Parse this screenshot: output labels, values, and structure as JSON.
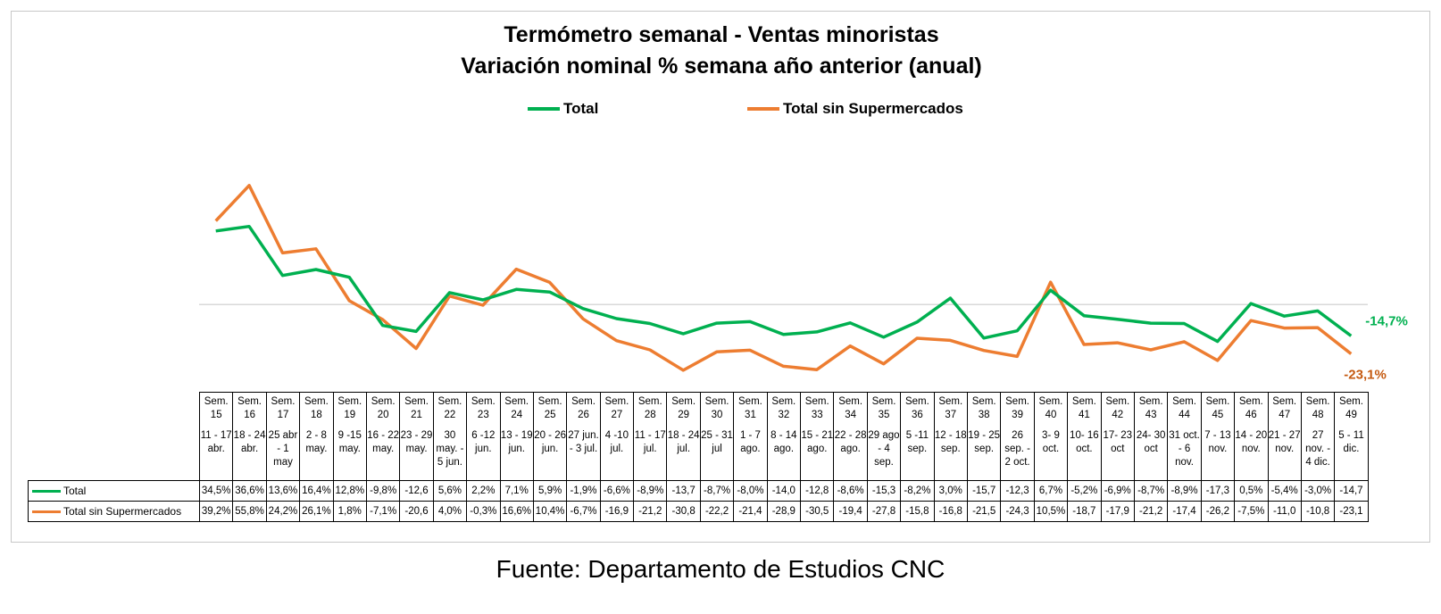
{
  "chart_data": {
    "type": "line",
    "title": "Termómetro semanal - Ventas minoristas",
    "subtitle": "Variación nominal % semana año anterior (anual)",
    "x": [
      "Sem. 15",
      "Sem. 16",
      "Sem. 17",
      "Sem. 18",
      "Sem. 19",
      "Sem. 20",
      "Sem. 21",
      "Sem. 22",
      "Sem. 23",
      "Sem. 24",
      "Sem. 25",
      "Sem. 26",
      "Sem. 27",
      "Sem. 28",
      "Sem. 29",
      "Sem. 30",
      "Sem. 31",
      "Sem. 32",
      "Sem. 33",
      "Sem. 34",
      "Sem. 35",
      "Sem. 36",
      "Sem. 37",
      "Sem. 38",
      "Sem. 39",
      "Sem. 40",
      "Sem. 41",
      "Sem. 42",
      "Sem. 43",
      "Sem. 44",
      "Sem. 45",
      "Sem. 46",
      "Sem. 47",
      "Sem. 48",
      "Sem. 49"
    ],
    "date_ranges": [
      "11 - 17 abr.",
      "18 - 24 abr.",
      "25 abr - 1 may",
      "2 - 8 may.",
      "9 -15 may.",
      "16 - 22 may.",
      "23 - 29 may.",
      "30 may. - 5 jun.",
      "6 -12 jun.",
      "13 - 19 jun.",
      "20 - 26 jun.",
      "27 jun. - 3 jul.",
      "4 -10 jul.",
      "11 - 17 jul.",
      "18 - 24 jul.",
      "25 - 31 jul",
      "1 - 7 ago.",
      "8 - 14 ago.",
      "15 - 21 ago.",
      "22 - 28 ago.",
      "29 ago - 4 sep.",
      "5 -11 sep.",
      "12 - 18 sep.",
      "19 - 25 sep.",
      "26 sep. - 2 oct.",
      "3- 9 oct.",
      "10- 16 oct.",
      "17- 23 oct",
      "24- 30 oct",
      "31 oct. - 6 nov.",
      "7 - 13 nov.",
      "14 - 20 nov.",
      "21 - 27 nov.",
      "27 nov. - 4 dic.",
      "5 - 11 dic."
    ],
    "ylim": [
      -30,
      62
    ],
    "grid": false,
    "legend_position": "top-center",
    "series": [
      {
        "name": "Total",
        "color": "#00b050",
        "values": [
          34.5,
          36.6,
          13.6,
          16.4,
          12.8,
          -9.8,
          -12.6,
          5.6,
          2.2,
          7.1,
          5.9,
          -1.9,
          -6.6,
          -8.9,
          -13.7,
          -8.7,
          -8.0,
          -14.0,
          -12.8,
          -8.6,
          -15.3,
          -8.2,
          3.0,
          -15.7,
          -12.3,
          6.7,
          -5.2,
          -6.9,
          -8.7,
          -8.9,
          -17.3,
          0.5,
          -5.4,
          -3.0,
          -14.7
        ],
        "table_labels": [
          "34,5%",
          "36,6%",
          "13,6%",
          "16,4%",
          "12,8%",
          "-9,8%",
          "-12,6",
          "5,6%",
          "2,2%",
          "7,1%",
          "5,9%",
          "-1,9%",
          "-6,6%",
          "-8,9%",
          "-13,7",
          "-8,7%",
          "-8,0%",
          "-14,0",
          "-12,8",
          "-8,6%",
          "-15,3",
          "-8,2%",
          "3,0%",
          "-15,7",
          "-12,3",
          "6,7%",
          "-5,2%",
          "-6,9%",
          "-8,7%",
          "-8,9%",
          "-17,3",
          "0,5%",
          "-5,4%",
          "-3,0%",
          "-14,7"
        ],
        "end_label": "-14,7%"
      },
      {
        "name": "Total sin Supermercados",
        "color": "#ed7d31",
        "values": [
          39.2,
          55.8,
          24.2,
          26.1,
          1.8,
          -7.1,
          -20.6,
          4.0,
          -0.3,
          16.6,
          10.4,
          -6.7,
          -16.9,
          -21.2,
          -30.8,
          -22.2,
          -21.4,
          -28.9,
          -30.5,
          -19.4,
          -27.8,
          -15.8,
          -16.8,
          -21.5,
          -24.3,
          10.5,
          -18.7,
          -17.9,
          -21.2,
          -17.4,
          -26.2,
          -7.5,
          -11.0,
          -10.8,
          -23.1
        ],
        "table_labels": [
          "39,2%",
          "55,8%",
          "24,2%",
          "26,1%",
          "1,8%",
          "-7,1%",
          "-20,6",
          "4,0%",
          "-0,3%",
          "16,6%",
          "10,4%",
          "-6,7%",
          "-16,9",
          "-21,2",
          "-30,8",
          "-22,2",
          "-21,4",
          "-28,9",
          "-30,5",
          "-19,4",
          "-27,8",
          "-15,8",
          "-16,8",
          "-21,5",
          "-24,3",
          "10,5%",
          "-18,7",
          "-17,9",
          "-21,2",
          "-17,4",
          "-26,2",
          "-7,5%",
          "-11,0",
          "-10,8",
          "-23,1"
        ],
        "end_label": "-23,1%"
      }
    ],
    "legend": {
      "total": "Total",
      "sin_super": "Total sin Supermercados"
    }
  },
  "source": "Fuente: Departamento de Estudios CNC"
}
